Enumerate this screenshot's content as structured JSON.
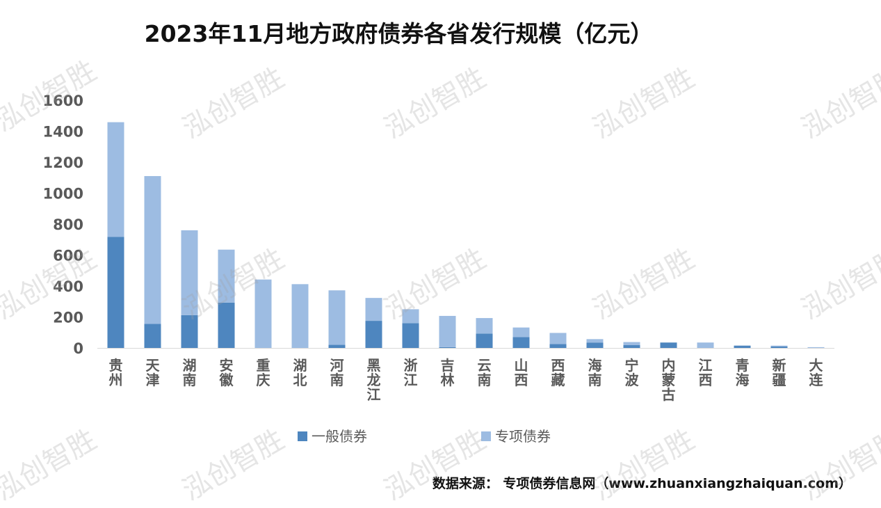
{
  "title": "2023年11月地方政府债券各省发行规模（亿元）",
  "source": "数据来源：  专项债券信息网（www.zhuanxiangzhaiquan.com）",
  "watermark": "泓创智胜",
  "colors": {
    "general": "#4e86bf",
    "special": "#9dbce2",
    "axis": "#d9d9d9",
    "tick": "#595959"
  },
  "chart_data": {
    "type": "bar",
    "stacked": true,
    "title": "2023年11月地方政府债券各省发行规模（亿元）",
    "categories": [
      "贵州",
      "天津",
      "湖南",
      "安徽",
      "重庆",
      "湖北",
      "河南",
      "黑龙江",
      "浙江",
      "吉林",
      "云南",
      "山西",
      "西藏",
      "海南",
      "宁波",
      "内蒙古",
      "江西",
      "青海",
      "新疆",
      "大连"
    ],
    "series": [
      {
        "name": "一般债券",
        "values": [
          718,
          155,
          212,
          293,
          0,
          0,
          20,
          175,
          160,
          5,
          93,
          70,
          25,
          35,
          18,
          35,
          0,
          15,
          10,
          0
        ]
      },
      {
        "name": "专项债券",
        "values": [
          740,
          955,
          548,
          342,
          442,
          412,
          352,
          148,
          90,
          202,
          100,
          62,
          72,
          22,
          20,
          0,
          35,
          0,
          5,
          5
        ]
      }
    ],
    "ylim": [
      0,
      1600
    ],
    "yticks": [
      0,
      200,
      400,
      600,
      800,
      1000,
      1200,
      1400,
      1600
    ],
    "legend_position": "bottom",
    "grid": false
  }
}
